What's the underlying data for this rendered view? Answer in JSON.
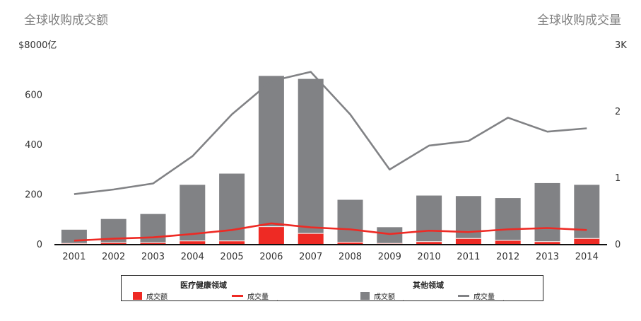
{
  "titles": {
    "left": "全球收购成交额",
    "right": "全球收购成交量"
  },
  "chart_data": {
    "type": "bar",
    "categories": [
      "2001",
      "2002",
      "2003",
      "2004",
      "2005",
      "2006",
      "2007",
      "2008",
      "2009",
      "2010",
      "2011",
      "2012",
      "2013",
      "2014"
    ],
    "left_axis": {
      "ticks": [
        0,
        200,
        400,
        600,
        800
      ],
      "tick_labels": [
        "0",
        "200",
        "400",
        "600",
        "$8000亿"
      ],
      "ylim": [
        0,
        800
      ]
    },
    "right_axis": {
      "ticks": [
        0,
        1,
        2,
        3
      ],
      "tick_labels": [
        "0",
        "1",
        "2",
        "3K"
      ],
      "ylim": [
        0,
        3
      ]
    },
    "series": [
      {
        "name": "医疗健康领域 成交额",
        "kind": "bar",
        "axis": "left",
        "color": "#ee2a24",
        "values": [
          5,
          8,
          8,
          15,
          15,
          72,
          45,
          10,
          5,
          12,
          25,
          17,
          12,
          25
        ]
      },
      {
        "name": "其他领域 成交额",
        "kind": "bar",
        "axis": "left",
        "color": "#818285",
        "values": [
          55,
          95,
          115,
          225,
          270,
          605,
          620,
          170,
          65,
          185,
          170,
          170,
          235,
          215
        ]
      },
      {
        "name": "医疗健康领域 成交量",
        "kind": "line",
        "axis": "right",
        "color": "#ee2a24",
        "values": [
          0.06,
          0.09,
          0.11,
          0.16,
          0.22,
          0.32,
          0.26,
          0.23,
          0.16,
          0.21,
          0.19,
          0.23,
          0.25,
          0.22
        ]
      },
      {
        "name": "其他领域 成交量",
        "kind": "line",
        "axis": "right",
        "color": "#818285",
        "values": [
          0.76,
          0.83,
          0.92,
          1.33,
          1.96,
          2.46,
          2.6,
          1.96,
          1.13,
          1.49,
          1.56,
          1.91,
          1.7,
          1.75
        ]
      }
    ],
    "legend": {
      "placement": "bottom",
      "group1": "医疗健康领域",
      "group2": "其他领域",
      "amount_label": "成交额",
      "volume_label": "成交量"
    }
  }
}
